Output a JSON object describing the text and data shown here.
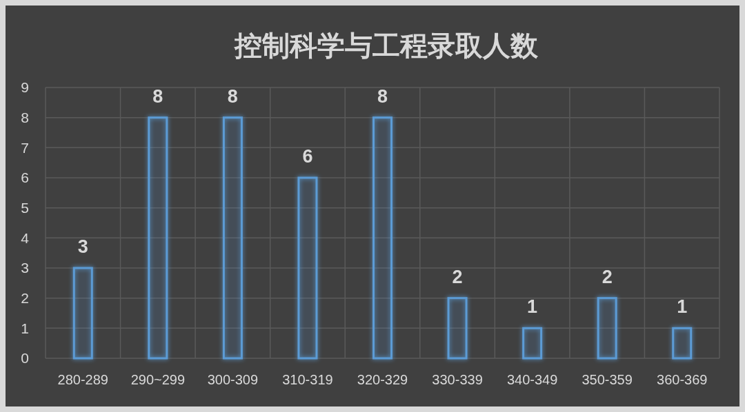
{
  "chart_data": {
    "type": "bar",
    "title": "控制科学与工程录取人数",
    "categories": [
      "280-289",
      "290~299",
      "300-309",
      "310-319",
      "320-329",
      "330-339",
      "340-349",
      "350-359",
      "360-369"
    ],
    "values": [
      3,
      8,
      8,
      6,
      8,
      2,
      1,
      2,
      1
    ],
    "color": "#5b9bd5",
    "ylim": [
      0,
      9
    ],
    "yticks": [
      0,
      1,
      2,
      3,
      4,
      5,
      6,
      7,
      8,
      9
    ],
    "grid": true,
    "data_labels": true
  }
}
